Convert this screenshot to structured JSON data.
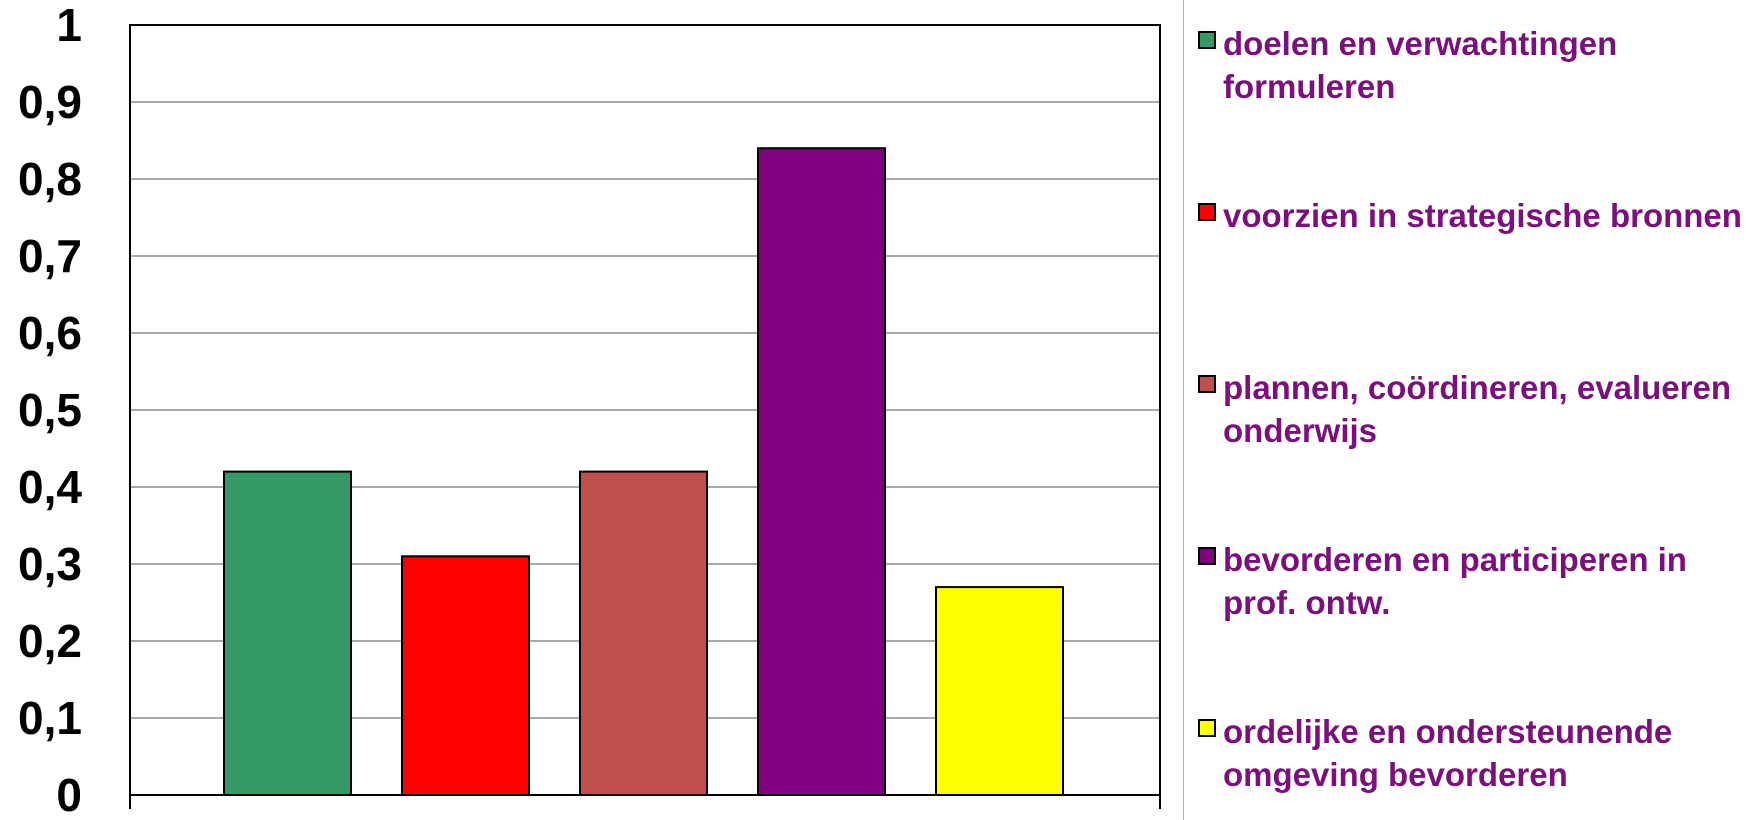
{
  "chart_data": {
    "type": "bar",
    "categories": [
      "doelen en verwachtingen formuleren",
      "voorzien in strategische bronnen",
      "plannen, coördineren, evalueren onderwijs",
      "bevorderen en participeren in prof. ontw.",
      "ordelijke en ondersteunende omgeving bevorderen"
    ],
    "values": [
      0.42,
      0.31,
      0.42,
      0.84,
      0.27
    ],
    "colors": [
      "#339966",
      "#ff0000",
      "#c0504d",
      "#800080",
      "#ffff00"
    ],
    "ylim": [
      0,
      1
    ],
    "yticks": [
      "0",
      "0,1",
      "0,2",
      "0,3",
      "0,4",
      "0,5",
      "0,6",
      "0,7",
      "0,8",
      "0,9",
      "1"
    ],
    "title": "",
    "xlabel": "",
    "ylabel": "",
    "grid": true,
    "legend_position": "right"
  },
  "legend": {
    "items": [
      {
        "label": "doelen en verwachtingen formuleren",
        "color": "#339966"
      },
      {
        "label": "voorzien in strategische bronnen",
        "color": "#ff0000"
      },
      {
        "label": "plannen, coördineren, evalueren onderwijs",
        "color": "#c0504d"
      },
      {
        "label": "bevorderen en participeren in prof. ontw.",
        "color": "#800080"
      },
      {
        "label": "ordelijke en ondersteunende omgeving bevorderen",
        "color": "#ffff00"
      }
    ],
    "text_color": "#7b0f7b"
  }
}
